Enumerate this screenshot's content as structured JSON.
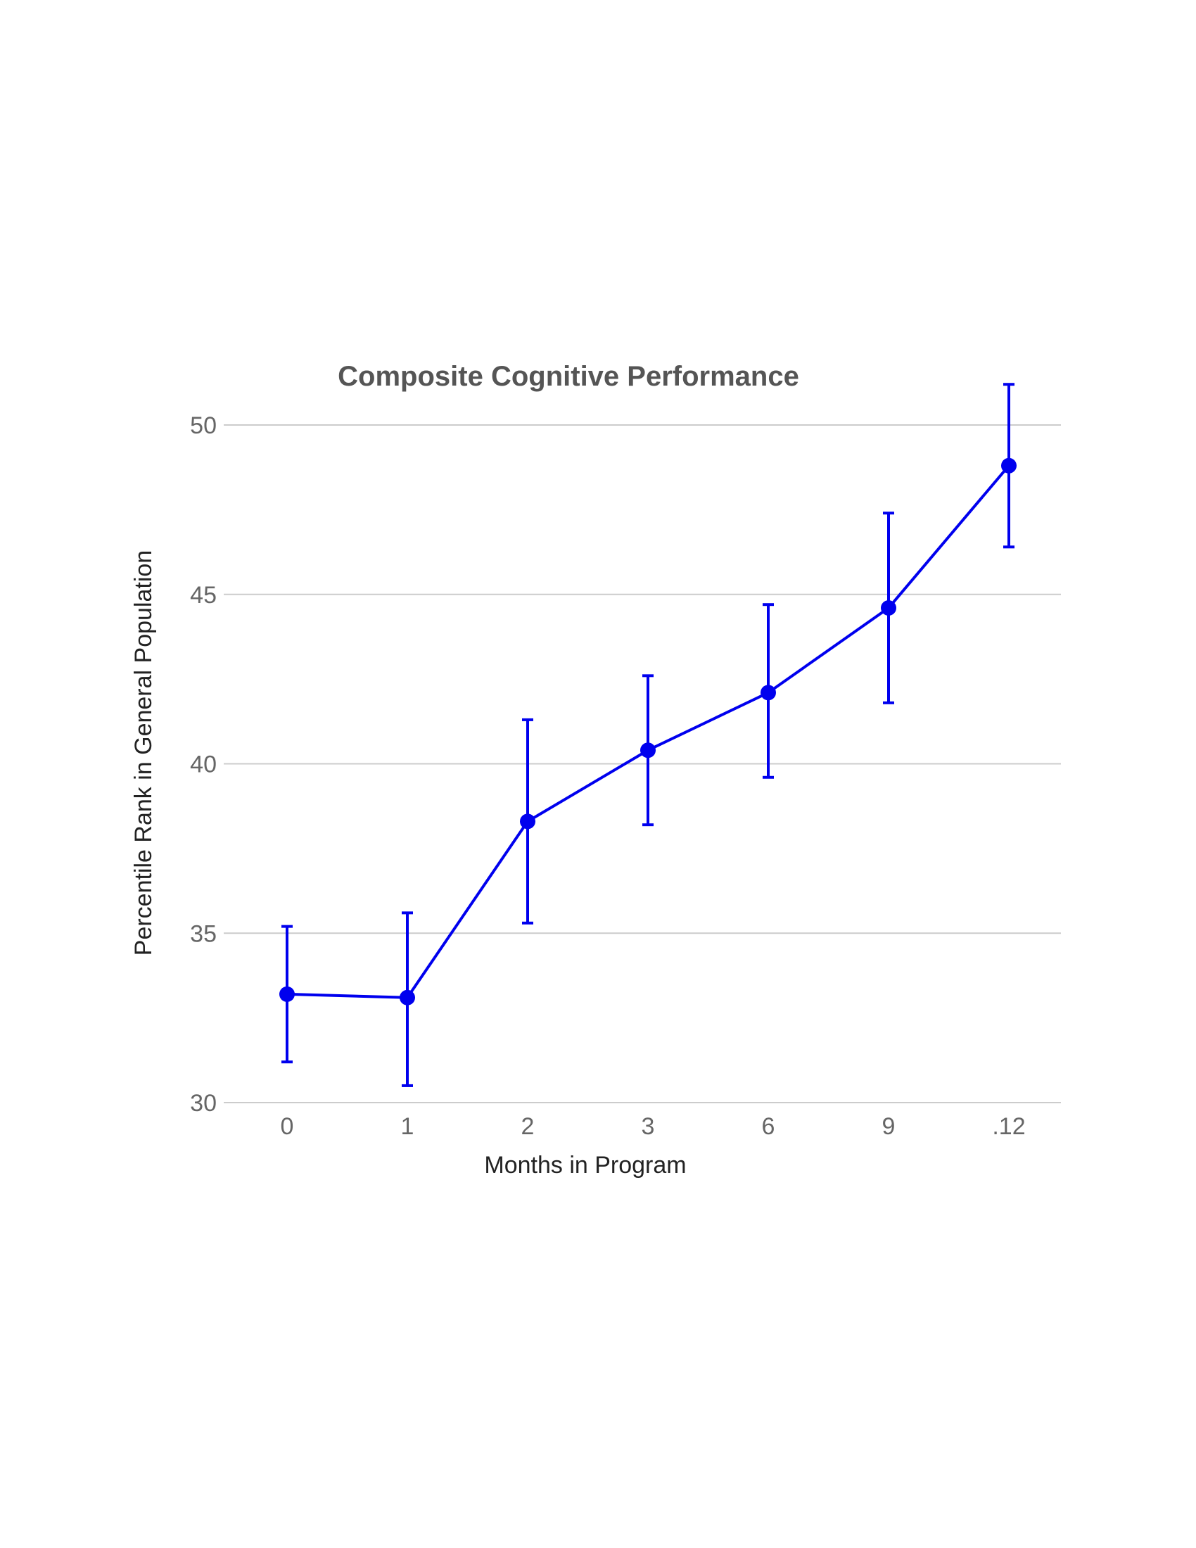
{
  "chart_data": {
    "type": "line",
    "title": "Composite Cognitive Performance",
    "xlabel": "Months in Program",
    "ylabel": "Percentile Rank in General Population",
    "categories": [
      "0",
      "1",
      "2",
      "3",
      "6",
      "9",
      ".12"
    ],
    "series": [
      {
        "values": [
          33.2,
          33.1,
          38.3,
          40.4,
          42.1,
          44.6,
          48.8
        ],
        "error_low": [
          31.2,
          30.5,
          35.3,
          38.2,
          39.6,
          41.8,
          46.4
        ],
        "error_high": [
          35.2,
          35.6,
          41.3,
          42.6,
          44.7,
          47.4,
          51.2
        ]
      }
    ],
    "ylim": [
      30,
      50
    ],
    "yticks": [
      "30",
      "35",
      "40",
      "45",
      "50"
    ],
    "grid": true,
    "legend": "none",
    "colors": {
      "series": "#0000ee",
      "grid": "#cccccc",
      "title": "#555555"
    }
  }
}
